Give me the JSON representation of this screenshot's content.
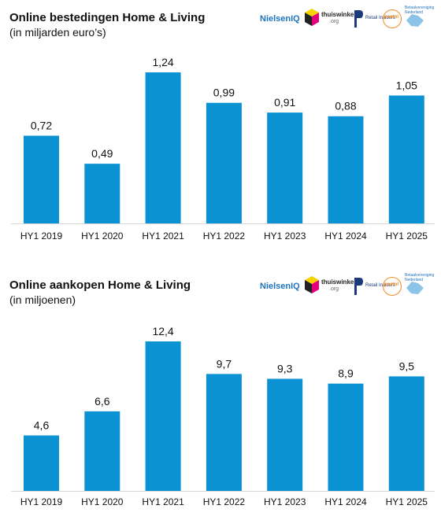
{
  "logos": {
    "nielsen": "NielsenIQ",
    "thuiswinkel": "thuiswinkel",
    "thuiswinkel_sub": ".org",
    "retail": "Retail Insiders",
    "postnl": "postnl",
    "betaal": "Betaalvereniging Nederland"
  },
  "colors": {
    "bar": "#0b92d3"
  },
  "chart_data": [
    {
      "type": "bar",
      "title": "Online bestedingen Home & Living",
      "subtitle": "(in miljarden euro’s)",
      "xlabel": "",
      "ylabel": "",
      "categories": [
        "HY1 2019",
        "HY1 2020",
        "HY1 2021",
        "HY1 2022",
        "HY1 2023",
        "HY1 2024",
        "HY1 2025"
      ],
      "values": [
        0.72,
        0.49,
        1.24,
        0.99,
        0.91,
        0.88,
        1.05
      ],
      "labels": [
        "0,72",
        "0,49",
        "1,24",
        "0,99",
        "0,91",
        "0,88",
        "1,05"
      ],
      "ylim": [
        0,
        1.24
      ],
      "grid": false,
      "legend": "none"
    },
    {
      "type": "bar",
      "title": "Online aankopen Home & Living",
      "subtitle": "(in miljoenen)",
      "xlabel": "",
      "ylabel": "",
      "categories": [
        "HY1 2019",
        "HY1 2020",
        "HY1 2021",
        "HY1 2022",
        "HY1 2023",
        "HY1 2024",
        "HY1 2025"
      ],
      "values": [
        4.6,
        6.6,
        12.4,
        9.7,
        9.3,
        8.9,
        9.5
      ],
      "labels": [
        "4,6",
        "6,6",
        "12,4",
        "9,7",
        "9,3",
        "8,9",
        "9,5"
      ],
      "ylim": [
        0,
        12.4
      ],
      "grid": false,
      "legend": "none"
    }
  ]
}
